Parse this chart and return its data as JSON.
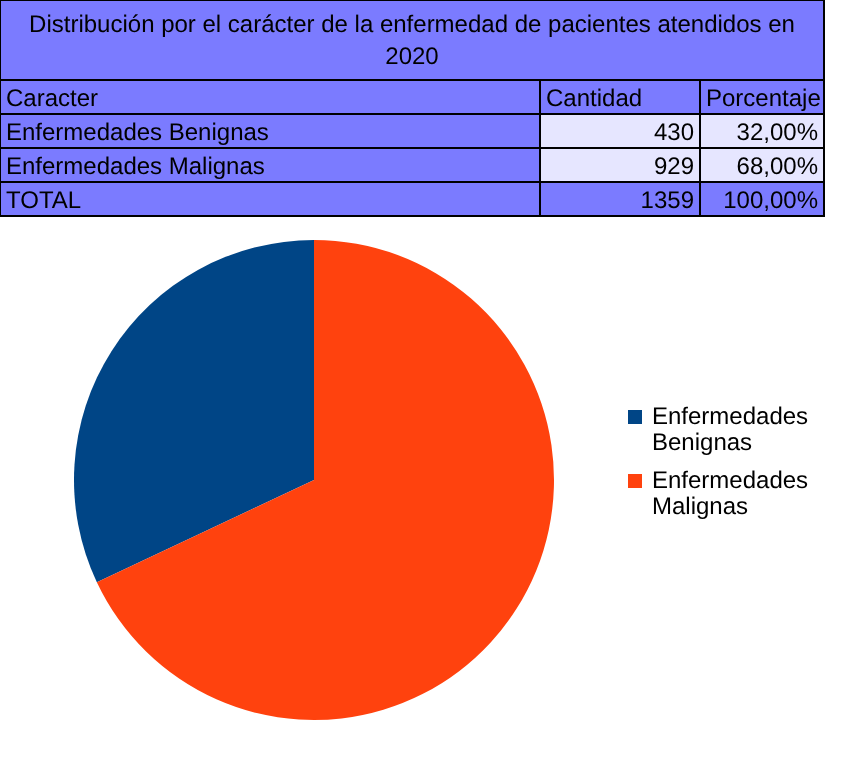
{
  "chart_data": {
    "type": "pie",
    "title": "Distribución por el carácter de la enfermedad de pacientes atendidos en 2020",
    "categories": [
      "Enfermedades Benignas",
      "Enfermedades Malignas"
    ],
    "values": [
      32,
      68
    ],
    "colors": [
      "#004586",
      "#ff420e"
    ],
    "annotations": [
      "Caracter",
      "Cantidad",
      "Porcentaje",
      "Enfermedades Benignas",
      "430",
      "32,00%",
      "Enfermedades Malignas",
      "929",
      "68,00%",
      "TOTAL",
      "1359",
      "100,00%"
    ],
    "legend": "right"
  }
}
